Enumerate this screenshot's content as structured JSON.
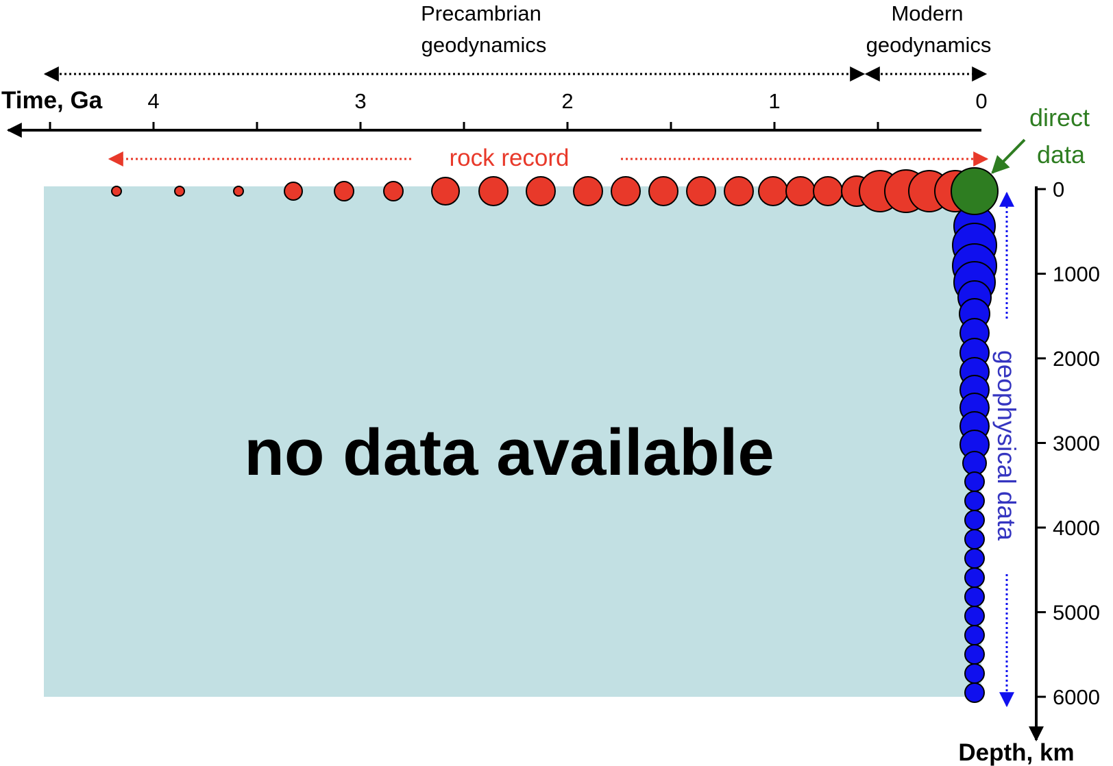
{
  "header": {
    "precambrian_line1": "Precambrian",
    "precambrian_line2": "geodynamics",
    "modern_line1": "Modern",
    "modern_line2": "geodynamics"
  },
  "time_axis": {
    "label": "Time, Ga",
    "ticks": [
      "4",
      "3",
      "2",
      "1",
      "0"
    ]
  },
  "depth_axis": {
    "label": "Depth, km",
    "ticks": [
      "0",
      "1000",
      "2000",
      "3000",
      "4000",
      "5000",
      "6000"
    ]
  },
  "annotations": {
    "rock_record": "rock record",
    "direct_line1": "direct",
    "direct_line2": "data",
    "geophysical": "geophysical data",
    "no_data": "no data available"
  },
  "colors": {
    "rock_record": "#e8392a",
    "direct_data": "#2e7d21",
    "geophysical": "#1010ee",
    "no_data_fill": "#c2e0e3",
    "rock_record_text": "#e8392a",
    "direct_text": "#2e7d21",
    "geophysical_text": "#3535c0"
  }
}
